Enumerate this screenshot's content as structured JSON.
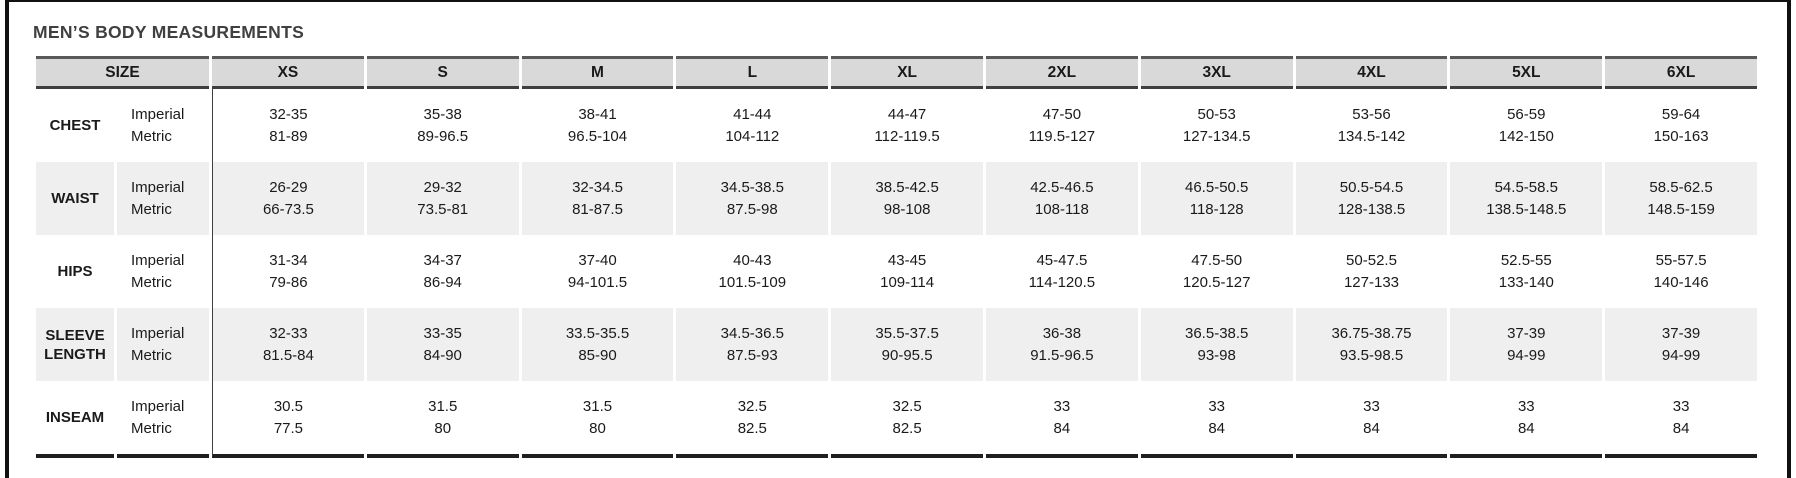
{
  "page": {
    "title": "MEN’S BODY MEASUREMENTS"
  },
  "table": {
    "header": {
      "size_label": "SIZE",
      "columns": [
        "XS",
        "S",
        "M",
        "L",
        "XL",
        "2XL",
        "3XL",
        "4XL",
        "5XL",
        "6XL"
      ]
    },
    "unit_labels": {
      "imperial": "Imperial",
      "metric": "Metric"
    },
    "rows": [
      {
        "label": "CHEST",
        "imperial": [
          "32-35",
          "35-38",
          "38-41",
          "41-44",
          "44-47",
          "47-50",
          "50-53",
          "53-56",
          "56-59",
          "59-64"
        ],
        "metric": [
          "81-89",
          "89-96.5",
          "96.5-104",
          "104-112",
          "112-119.5",
          "119.5-127",
          "127-134.5",
          "134.5-142",
          "142-150",
          "150-163"
        ]
      },
      {
        "label": "WAIST",
        "imperial": [
          "26-29",
          "29-32",
          "32-34.5",
          "34.5-38.5",
          "38.5-42.5",
          "42.5-46.5",
          "46.5-50.5",
          "50.5-54.5",
          "54.5-58.5",
          "58.5-62.5"
        ],
        "metric": [
          "66-73.5",
          "73.5-81",
          "81-87.5",
          "87.5-98",
          "98-108",
          "108-118",
          "118-128",
          "128-138.5",
          "138.5-148.5",
          "148.5-159"
        ]
      },
      {
        "label": "HIPS",
        "imperial": [
          "31-34",
          "34-37",
          "37-40",
          "40-43",
          "43-45",
          "45-47.5",
          "47.5-50",
          "50-52.5",
          "52.5-55",
          "55-57.5"
        ],
        "metric": [
          "79-86",
          "86-94",
          "94-101.5",
          "101.5-109",
          "109-114",
          "114-120.5",
          "120.5-127",
          "127-133",
          "133-140",
          "140-146"
        ]
      },
      {
        "label": "SLEEVE LENGTH",
        "imperial": [
          "32-33",
          "33-35",
          "33.5-35.5",
          "34.5-36.5",
          "35.5-37.5",
          "36-38",
          "36.5-38.5",
          "36.75-38.75",
          "37-39",
          "37-39"
        ],
        "metric": [
          "81.5-84",
          "84-90",
          "85-90",
          "87.5-93",
          "90-95.5",
          "91.5-96.5",
          "93-98",
          "93.5-98.5",
          "94-99",
          "94-99"
        ]
      },
      {
        "label": "INSEAM",
        "imperial": [
          "30.5",
          "31.5",
          "31.5",
          "32.5",
          "32.5",
          "33",
          "33",
          "33",
          "33",
          "33"
        ],
        "metric": [
          "77.5",
          "80",
          "80",
          "82.5",
          "82.5",
          "84",
          "84",
          "84",
          "84",
          "84"
        ]
      }
    ]
  },
  "colors": {
    "header_bg": "#d9d9d9",
    "stripe_bg": "#efefef",
    "title_text": "#404040",
    "border_dark": "#1f1f1f",
    "frame": "#111111"
  }
}
